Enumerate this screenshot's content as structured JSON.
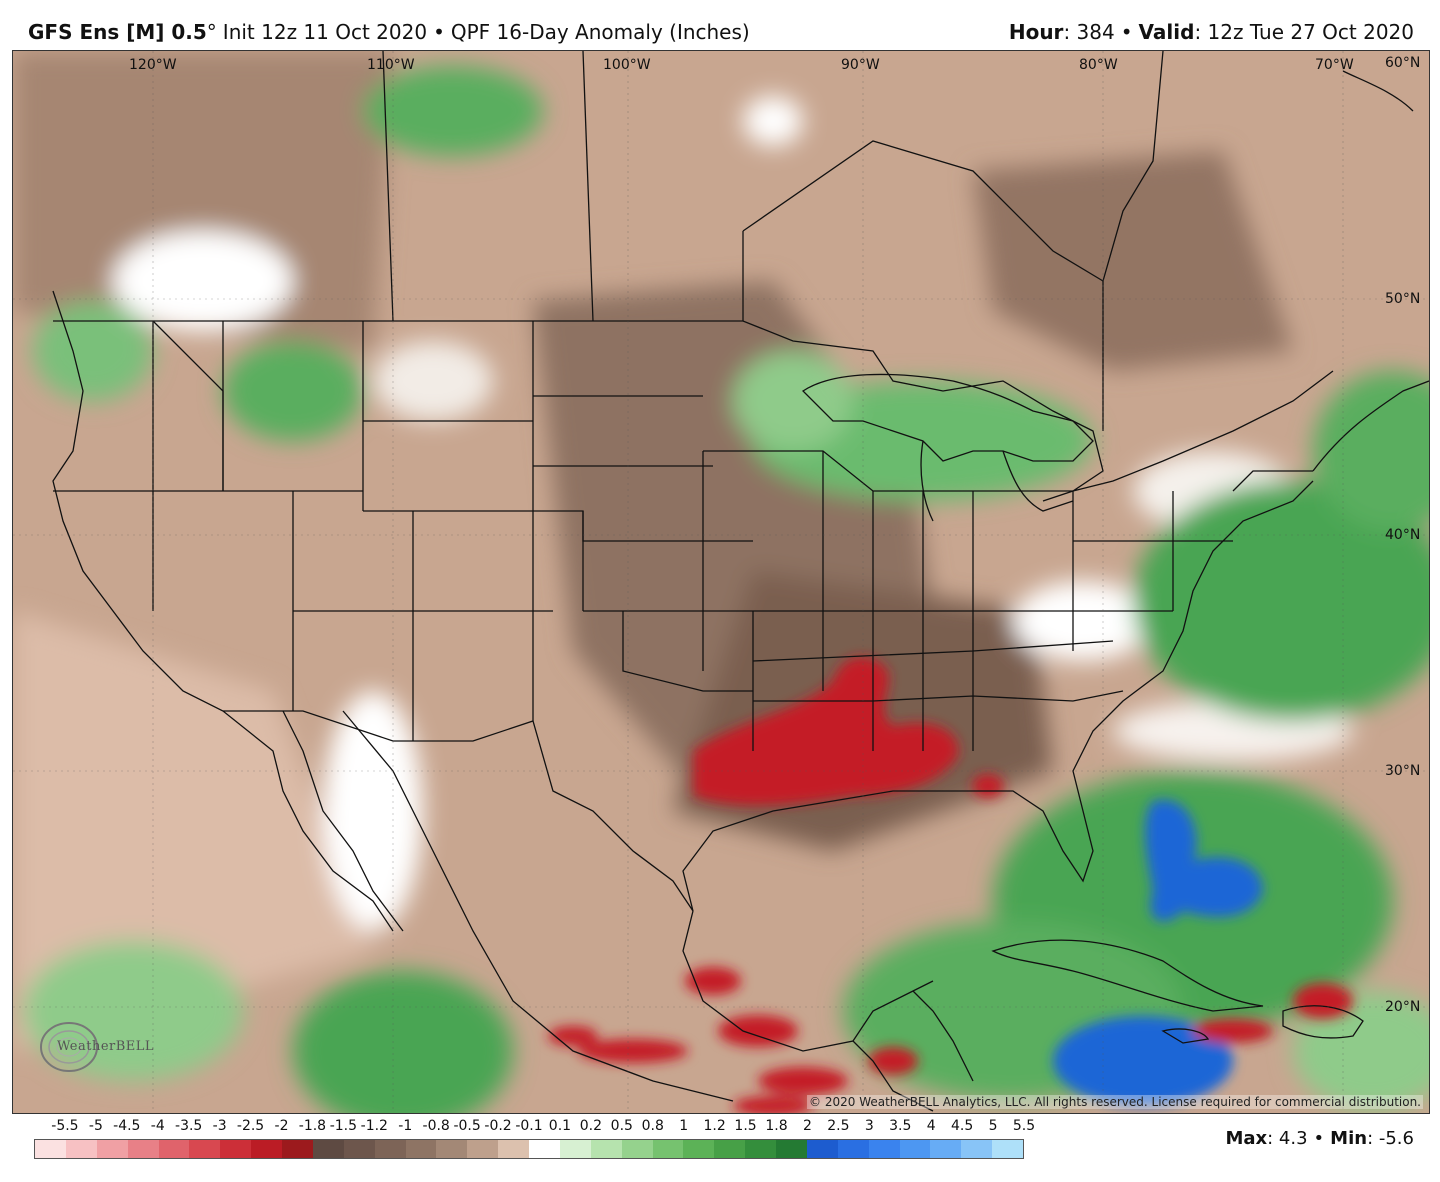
{
  "header": {
    "model": "GFS Ens [M] 0.5",
    "degree": "°",
    "init": "Init 12z 11 Oct 2020",
    "bullet": "•",
    "product": "QPF 16-Day Anomaly (Inches)",
    "hour_label": "Hour",
    "hour_value": ": 384",
    "valid_label": "Valid",
    "valid_value": ": 12z Tue 27 Oct 2020"
  },
  "map": {
    "lon_labels": [
      "120°W",
      "110°W",
      "100°W",
      "90°W",
      "80°W",
      "70°W",
      "60°N"
    ],
    "lat_labels": [
      "50°N",
      "40°N",
      "30°N",
      "20°N"
    ],
    "copyright": "© 2020 WeatherBELL Analytics, LLC. All rights reserved. License required for commercial distribution.",
    "logo_text": "WeatherBELL",
    "colors": {
      "ocean_dry": "#d9b4a0",
      "land_dry": "#a88874",
      "very_dry": "#7a6050",
      "wet_light": "#8fcb8a",
      "wet": "#3c9a4c",
      "very_wet": "#1f66d6",
      "extreme_dry": "#c41e28",
      "neutral": "#ffffff"
    }
  },
  "legend": {
    "ticks": [
      "-5.5",
      "-5",
      "-4.5",
      "-4",
      "-3.5",
      "-3",
      "-2.5",
      "-2",
      "-1.8",
      "-1.5",
      "-1.2",
      "-1",
      "-0.8",
      "-0.5",
      "-0.2",
      "-0.1",
      "0.1",
      "0.2",
      "0.5",
      "0.8",
      "1",
      "1.2",
      "1.5",
      "1.8",
      "2",
      "2.5",
      "3",
      "3.5",
      "4",
      "4.5",
      "5",
      "5.5"
    ],
    "colors": [
      "#fbe1e1",
      "#f7c1c3",
      "#f0a0a4",
      "#e88087",
      "#e0636b",
      "#d84850",
      "#cc2f38",
      "#bb1c25",
      "#9c1a1d",
      "#5e4a42",
      "#6d564c",
      "#7d6457",
      "#8e7464",
      "#a38876",
      "#bea08c",
      "#dcc1ae",
      "#ffffff",
      "#d7f0d2",
      "#b6e3ae",
      "#95d28d",
      "#76c26f",
      "#5cb257",
      "#47a047",
      "#348e3c",
      "#247a33",
      "#1d5ccf",
      "#2a6fe2",
      "#3a83ee",
      "#4d97f2",
      "#67acf5",
      "#88c4f7",
      "#aee0f9"
    ]
  },
  "stats": {
    "max_label": "Max",
    "max_value": ": 4.3",
    "min_label": "Min",
    "min_value": ": -5.6",
    "bullet": "•"
  }
}
